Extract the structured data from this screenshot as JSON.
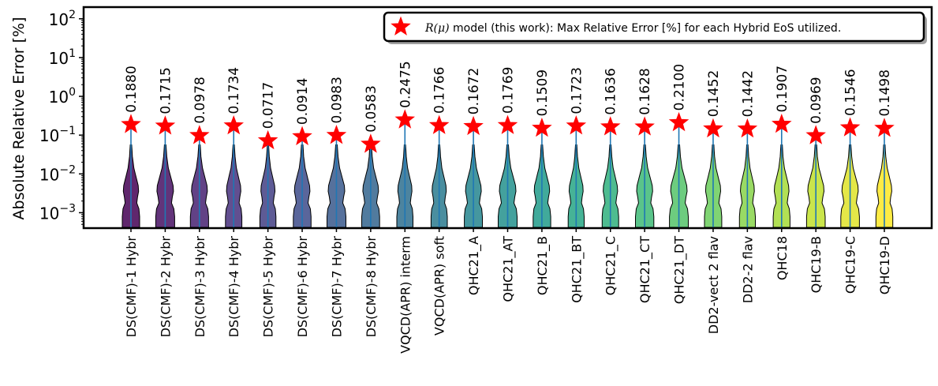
{
  "chart_data": {
    "type": "violin",
    "ylabel": "Absolute Relative Error [%]",
    "yscale": "log",
    "ylim": [
      0.0004,
      200
    ],
    "y_ticks": [
      {
        "value": 0.001,
        "base": "10",
        "exp": "−3"
      },
      {
        "value": 0.01,
        "base": "10",
        "exp": "−2"
      },
      {
        "value": 0.1,
        "base": "10",
        "exp": "−1"
      },
      {
        "value": 1,
        "base": "10",
        "exp": "0"
      },
      {
        "value": 10,
        "base": "10",
        "exp": "1"
      },
      {
        "value": 100,
        "base": "10",
        "exp": "2"
      }
    ],
    "categories": [
      "DS(CMF)-1 Hybr",
      "DS(CMF)-2 Hybr",
      "DS(CMF)-3 Hybr",
      "DS(CMF)-4 Hybr",
      "DS(CMF)-5 Hybr",
      "DS(CMF)-6 Hybr",
      "DS(CMF)-7 Hybr",
      "DS(CMF)-8 Hybr",
      "VQCD(APR) interm",
      "VQCD(APR) soft",
      "QHC21_A",
      "QHC21_AT",
      "QHC21_B",
      "QHC21_BT",
      "QHC21_C",
      "QHC21_CT",
      "QHC21_DT",
      "DD2-vect 2 flav",
      "DD2-2 flav",
      "QHC18",
      "QHC19-B",
      "QHC19-C",
      "QHC19-D"
    ],
    "max_errors": [
      0.188,
      0.1715,
      0.0978,
      0.1734,
      0.0717,
      0.0914,
      0.0983,
      0.0583,
      0.2475,
      0.1766,
      0.1672,
      0.1769,
      0.1509,
      0.1723,
      0.1636,
      0.1628,
      0.21,
      0.1452,
      0.1442,
      0.1907,
      0.0969,
      0.1546,
      0.1498
    ],
    "max_error_labels": [
      "0.1880",
      "0.1715",
      "0.0978",
      "0.1734",
      "0.0717",
      "0.0914",
      "0.0983",
      "0.0583",
      "0.2475",
      "0.1766",
      "0.1672",
      "0.1769",
      "0.1509",
      "0.1723",
      "0.1636",
      "0.1628",
      "0.2100",
      "0.1452",
      "0.1442",
      "0.1907",
      "0.0969",
      "0.1546",
      "0.1498"
    ],
    "legend": {
      "position": "top-right",
      "math": "R(μ)",
      "text": " model (this work): Max Relative Error [%] for each Hybrid EoS utilized."
    },
    "colormap": "viridis",
    "colors": {
      "star": "#ff0000",
      "line": "#1f77b4",
      "violin_edge": "#000000"
    }
  }
}
